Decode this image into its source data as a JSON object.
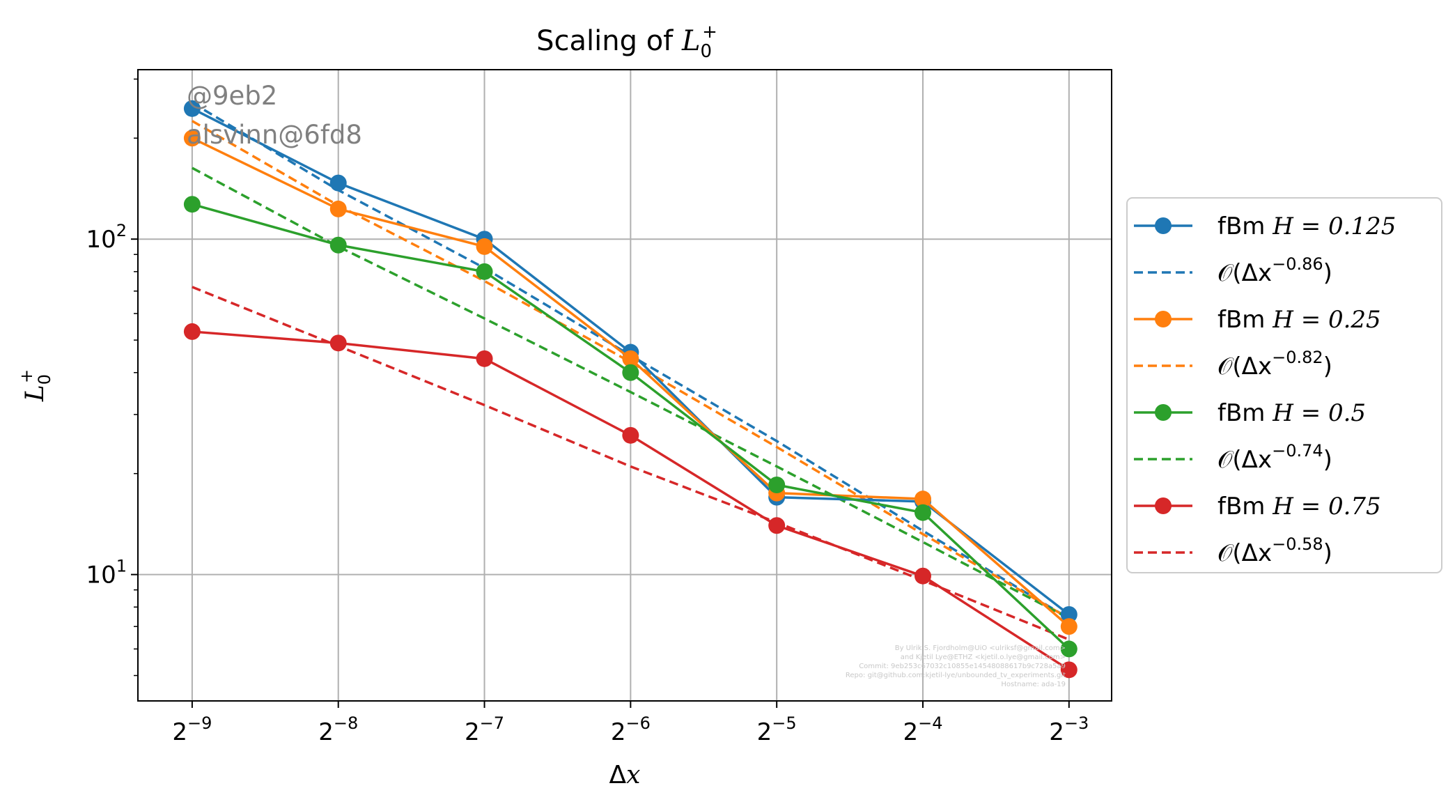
{
  "chart_data": {
    "type": "line",
    "title_prefix": "Scaling of ",
    "title_symbol": "L",
    "title_sub": "0",
    "title_sup": "+",
    "xlabel": "Δx",
    "ylabel_symbol": "L",
    "ylabel_sub": "0",
    "ylabel_sup": "+",
    "x_scale": "log2",
    "y_scale": "log10",
    "xlim": [
      0.00151,
      0.153
    ],
    "ylim": [
      4.2,
      320
    ],
    "grid": true,
    "legend_position": "outside-right",
    "x": [
      0.001953125,
      0.00390625,
      0.0078125,
      0.015625,
      0.03125,
      0.0625,
      0.125
    ],
    "x_tick_labels": [
      {
        "base": "2",
        "exp": "−9"
      },
      {
        "base": "2",
        "exp": "−8"
      },
      {
        "base": "2",
        "exp": "−7"
      },
      {
        "base": "2",
        "exp": "−6"
      },
      {
        "base": "2",
        "exp": "−5"
      },
      {
        "base": "2",
        "exp": "−4"
      },
      {
        "base": "2",
        "exp": "−3"
      }
    ],
    "y_ticks": [
      {
        "value": 10,
        "base": "10",
        "exp": "1"
      },
      {
        "value": 100,
        "base": "10",
        "exp": "2"
      }
    ],
    "y_minor_ticks": [
      5,
      6,
      7,
      8,
      9,
      20,
      30,
      40,
      50,
      60,
      70,
      80,
      90,
      200,
      300
    ],
    "series": [
      {
        "name": "fBm H = 0.125",
        "name_prefix": "fBm ",
        "name_math": "H = 0.125",
        "color": "#1f77b4",
        "values": [
          245,
          147,
          100,
          46,
          17,
          16.5,
          7.6
        ],
        "fit_label_exp": "−0.86",
        "fit": [
          255,
          140,
          82,
          45,
          25,
          13.5,
          7.4
        ]
      },
      {
        "name": "fBm H = 0.25",
        "name_prefix": "fBm ",
        "name_math": "H = 0.25",
        "color": "#ff7f0e",
        "values": [
          200,
          123,
          95,
          44,
          17.5,
          16.8,
          7
        ],
        "fit_label_exp": "−0.82",
        "fit": [
          225,
          126,
          75,
          43,
          24,
          13.2,
          7.4
        ]
      },
      {
        "name": "fBm H = 0.5",
        "name_prefix": "fBm ",
        "name_math": "H = 0.5",
        "color": "#2ca02c",
        "values": [
          127,
          96,
          80,
          40,
          18.5,
          15.3,
          6
        ],
        "fit_label_exp": "−0.74",
        "fit": [
          163,
          95,
          58,
          35,
          21,
          12.5,
          7.4
        ]
      },
      {
        "name": "fBm H = 0.75",
        "name_prefix": "fBm ",
        "name_math": "H = 0.75",
        "color": "#d62728",
        "values": [
          53,
          49,
          44,
          26,
          14,
          9.9,
          5.2
        ],
        "fit_label_exp": "−0.58",
        "fit": [
          72,
          48,
          32,
          21,
          14.3,
          9.6,
          6.4
        ]
      }
    ],
    "fit_label_prefix": "𝒪(Δx",
    "fit_label_suffix": ")",
    "annotations": [
      "@9eb2",
      "alsvinn@6fd8"
    ],
    "footer_text": [
      "By Ulrik S. Fjordholm@UiO <ulriksf@gmail.com>",
      "and Kjetil Lye@ETHZ <kjetil.o.lye@gmail.com>",
      "Commit: 9eb253c67032c10855e14548088617b9c728a5a9",
      "Repo: git@github.com:kjetil-lye/unbounded_tv_experiments.git",
      "Hostname: ada-19"
    ]
  }
}
